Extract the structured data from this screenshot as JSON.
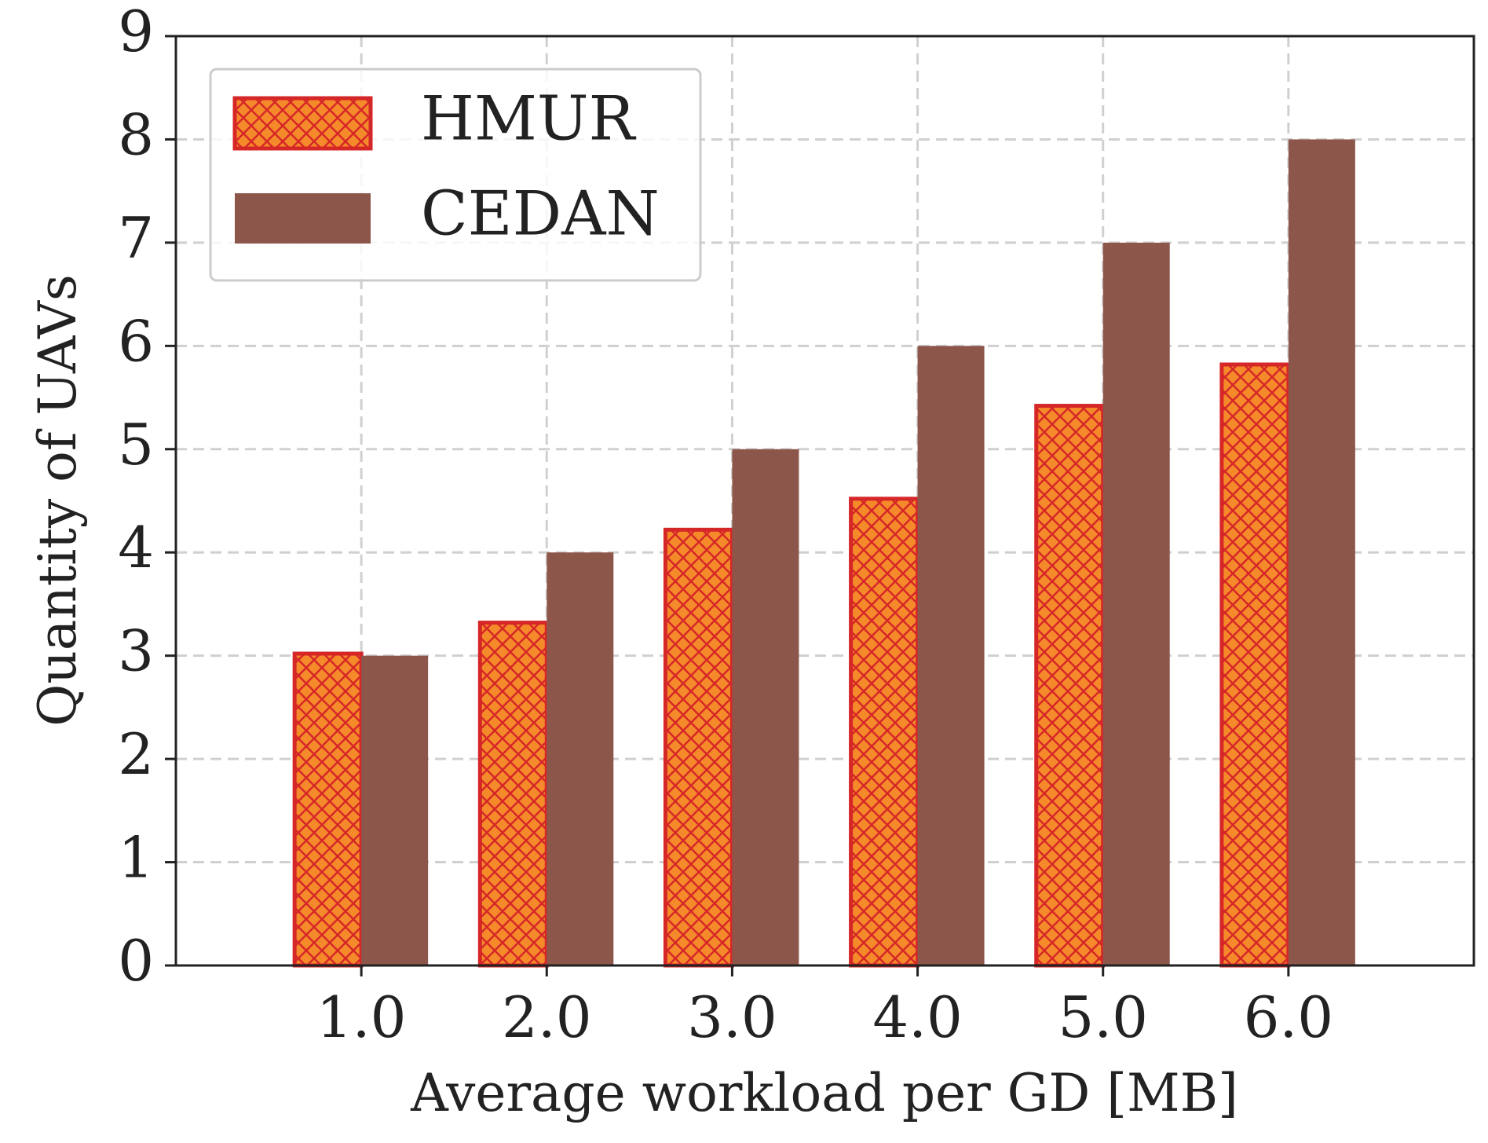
{
  "chart_data": {
    "type": "bar",
    "xlabel": "Average workload per GD [MB]",
    "ylabel": "Quantity of UAVs",
    "categories": [
      "1.0",
      "2.0",
      "3.0",
      "4.0",
      "5.0",
      "6.0"
    ],
    "series": [
      {
        "name": "HMUR",
        "color": "#f58a2a",
        "edgecolor": "#d62728",
        "hatch": "xx",
        "values": [
          3.02,
          3.32,
          4.22,
          4.52,
          5.42,
          5.82
        ]
      },
      {
        "name": "CEDAN",
        "color": "#8c564b",
        "values": [
          3,
          4,
          5,
          6,
          7,
          8
        ]
      }
    ],
    "ylim": [
      0,
      9
    ],
    "yticks": [
      0,
      1,
      2,
      3,
      4,
      5,
      6,
      7,
      8,
      9
    ],
    "grid": true,
    "legend": "upper left"
  }
}
